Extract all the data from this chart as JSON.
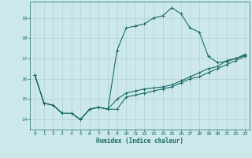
{
  "xlabel": "Humidex (Indice chaleur)",
  "bg_color": "#cce8ea",
  "grid_color": "#aaccce",
  "line_color": "#1a6b6b",
  "xlim": [
    -0.5,
    23.5
  ],
  "ylim": [
    13.5,
    19.8
  ],
  "yticks": [
    14,
    15,
    16,
    17,
    18,
    19
  ],
  "xticks": [
    0,
    1,
    2,
    3,
    4,
    5,
    6,
    7,
    8,
    9,
    10,
    11,
    12,
    13,
    14,
    15,
    16,
    17,
    18,
    19,
    20,
    21,
    22,
    23
  ],
  "line1_x": [
    0,
    1,
    2,
    3,
    4,
    5,
    6,
    7,
    8,
    9,
    10,
    11,
    12,
    13,
    14,
    15,
    16,
    17,
    18,
    19,
    20,
    21,
    22,
    23
  ],
  "line1_y": [
    16.2,
    14.8,
    14.7,
    14.3,
    14.3,
    14.0,
    14.5,
    14.6,
    14.5,
    14.5,
    15.1,
    15.2,
    15.3,
    15.4,
    15.5,
    15.6,
    15.8,
    16.0,
    16.1,
    16.3,
    16.5,
    16.7,
    16.9,
    17.1
  ],
  "line2_x": [
    0,
    1,
    2,
    3,
    4,
    5,
    6,
    7,
    8,
    9,
    10,
    11,
    12,
    13,
    14,
    15,
    16,
    17,
    18,
    19,
    20,
    21,
    22,
    23
  ],
  "line2_y": [
    16.2,
    14.8,
    14.7,
    14.3,
    14.3,
    14.0,
    14.5,
    14.6,
    14.5,
    17.4,
    18.5,
    18.6,
    18.7,
    19.0,
    19.1,
    19.5,
    19.2,
    18.5,
    18.3,
    17.1,
    16.8,
    16.85,
    17.0,
    17.15
  ],
  "line3_x": [
    0,
    1,
    2,
    3,
    4,
    5,
    6,
    7,
    8,
    9,
    10,
    11,
    12,
    13,
    14,
    15,
    16,
    17,
    18,
    19,
    20,
    21,
    22,
    23
  ],
  "line3_y": [
    16.2,
    14.8,
    14.7,
    14.3,
    14.3,
    14.0,
    14.5,
    14.6,
    14.5,
    15.0,
    15.3,
    15.4,
    15.5,
    15.55,
    15.6,
    15.7,
    15.9,
    16.1,
    16.3,
    16.5,
    16.6,
    16.9,
    17.0,
    17.2
  ]
}
